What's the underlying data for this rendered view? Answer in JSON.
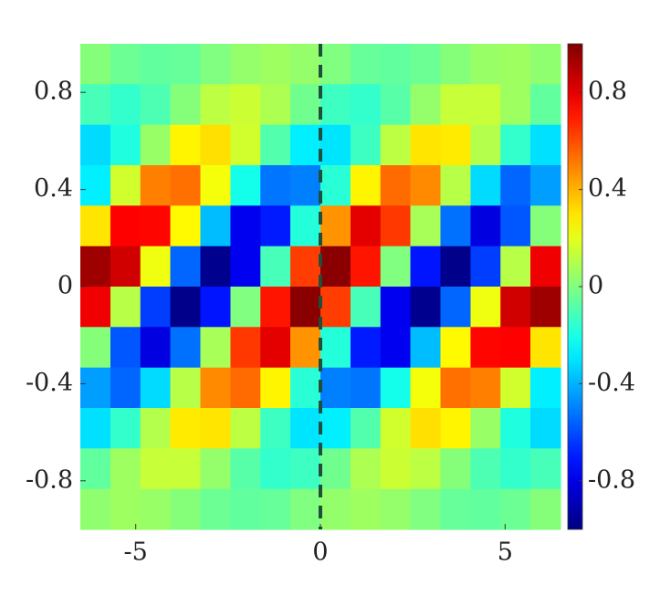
{
  "chart_data": {
    "type": "heatmap",
    "colormap": "jet",
    "x": [
      -6.09,
      -5.28,
      -4.47,
      -3.66,
      -2.84,
      -2.03,
      -1.22,
      -0.41,
      0.41,
      1.22,
      2.03,
      2.84,
      3.66,
      4.47,
      5.28,
      6.09
    ],
    "y": [
      0.917,
      0.75,
      0.583,
      0.417,
      0.25,
      0.083,
      -0.083,
      -0.25,
      -0.417,
      -0.583,
      -0.75,
      -0.917
    ],
    "z": [
      [
        0.01,
        -0.04,
        -0.06,
        -0.05,
        0.0,
        0.04,
        0.06,
        0.04,
        0.0,
        -0.05,
        -0.06,
        -0.04,
        0.01,
        0.05,
        0.06,
        0.03
      ],
      [
        -0.11,
        -0.15,
        -0.1,
        0.01,
        0.12,
        0.15,
        0.09,
        -0.03,
        -0.13,
        -0.15,
        -0.08,
        0.04,
        0.14,
        0.14,
        0.06,
        -0.06
      ],
      [
        -0.32,
        -0.19,
        0.05,
        0.27,
        0.31,
        0.16,
        -0.09,
        -0.28,
        -0.3,
        -0.13,
        0.12,
        0.3,
        0.29,
        0.1,
        -0.15,
        -0.31
      ],
      [
        -0.28,
        0.16,
        0.5,
        0.53,
        0.23,
        -0.21,
        -0.52,
        -0.5,
        -0.17,
        0.27,
        0.54,
        0.48,
        0.11,
        -0.32,
        -0.55,
        -0.44
      ],
      [
        0.3,
        0.75,
        0.74,
        0.26,
        -0.38,
        -0.78,
        -0.7,
        -0.18,
        0.46,
        0.8,
        0.64,
        0.08,
        -0.53,
        -0.81,
        -0.58,
        0.01
      ],
      [
        0.94,
        0.84,
        0.22,
        -0.55,
        -0.97,
        -0.78,
        -0.11,
        0.63,
        0.98,
        0.71,
        0.0,
        -0.71,
        -0.98,
        -0.63,
        0.11,
        0.78
      ],
      [
        0.78,
        0.11,
        -0.63,
        -0.98,
        -0.71,
        0.0,
        0.71,
        0.98,
        0.63,
        -0.11,
        -0.78,
        -0.97,
        -0.55,
        0.22,
        0.84,
        0.94
      ],
      [
        0.01,
        -0.58,
        -0.81,
        -0.53,
        0.08,
        0.64,
        0.8,
        0.46,
        -0.18,
        -0.7,
        -0.78,
        -0.38,
        0.26,
        0.74,
        0.75,
        0.3
      ],
      [
        -0.44,
        -0.55,
        -0.32,
        0.11,
        0.48,
        0.54,
        0.27,
        -0.17,
        -0.5,
        -0.52,
        -0.21,
        0.23,
        0.53,
        0.5,
        0.16,
        -0.28
      ],
      [
        -0.31,
        -0.15,
        0.1,
        0.29,
        0.3,
        0.12,
        -0.13,
        -0.3,
        -0.28,
        -0.09,
        0.16,
        0.31,
        0.27,
        0.05,
        -0.19,
        -0.32
      ],
      [
        -0.06,
        0.06,
        0.14,
        0.14,
        0.04,
        -0.08,
        -0.15,
        -0.13,
        -0.03,
        0.09,
        0.15,
        0.12,
        0.01,
        -0.1,
        -0.15,
        -0.11
      ],
      [
        0.03,
        0.06,
        0.05,
        0.01,
        -0.04,
        -0.06,
        -0.05,
        0.0,
        0.04,
        0.06,
        0.04,
        0.0,
        -0.05,
        -0.06,
        -0.04,
        0.01
      ]
    ],
    "xlim": [
      -6.5,
      6.5
    ],
    "xticks": [
      -5,
      0,
      5
    ],
    "ylim": [
      -1,
      1
    ],
    "yticks": [
      -0.8,
      -0.4,
      0,
      0.4,
      0.8
    ],
    "clim": [
      -1,
      1
    ],
    "cticks": [
      -0.8,
      -0.4,
      0,
      0.4,
      0.8
    ],
    "vline": 0
  }
}
